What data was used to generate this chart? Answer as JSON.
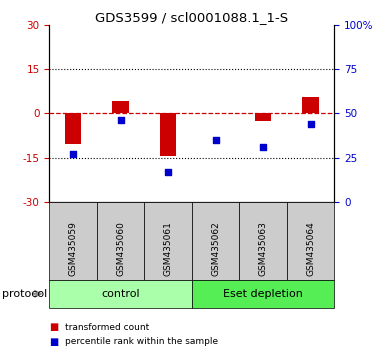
{
  "title": "GDS3599 / scl0001088.1_1-S",
  "samples": [
    "GSM435059",
    "GSM435060",
    "GSM435061",
    "GSM435062",
    "GSM435063",
    "GSM435064"
  ],
  "transformed_counts": [
    -10.5,
    4.0,
    -14.5,
    0.0,
    -2.5,
    5.5
  ],
  "percentile_ranks": [
    27,
    46,
    17,
    35,
    31,
    44
  ],
  "ylim_left": [
    -30,
    30
  ],
  "ylim_right": [
    0,
    100
  ],
  "yticks_left": [
    -30,
    -15,
    0,
    15,
    30
  ],
  "yticks_right": [
    0,
    25,
    50,
    75,
    100
  ],
  "ytick_labels_left": [
    "-30",
    "-15",
    "0",
    "15",
    "30"
  ],
  "ytick_labels_right": [
    "0",
    "25",
    "50",
    "75",
    "100%"
  ],
  "hline_y": 0,
  "dotted_lines": [
    -15,
    15
  ],
  "bar_color": "#cc0000",
  "dot_color": "#0000cc",
  "bar_width": 0.35,
  "groups": [
    {
      "label": "control",
      "samples": [
        0,
        1,
        2
      ]
    },
    {
      "label": "Eset depletion",
      "samples": [
        3,
        4,
        5
      ]
    }
  ],
  "protocol_label": "protocol",
  "legend_bar_label": "transformed count",
  "legend_dot_label": "percentile rank within the sample",
  "background_color": "#ffffff",
  "sample_box_color": "#cccccc",
  "group_color_control": "#aaffaa",
  "group_color_eset": "#55ee55"
}
